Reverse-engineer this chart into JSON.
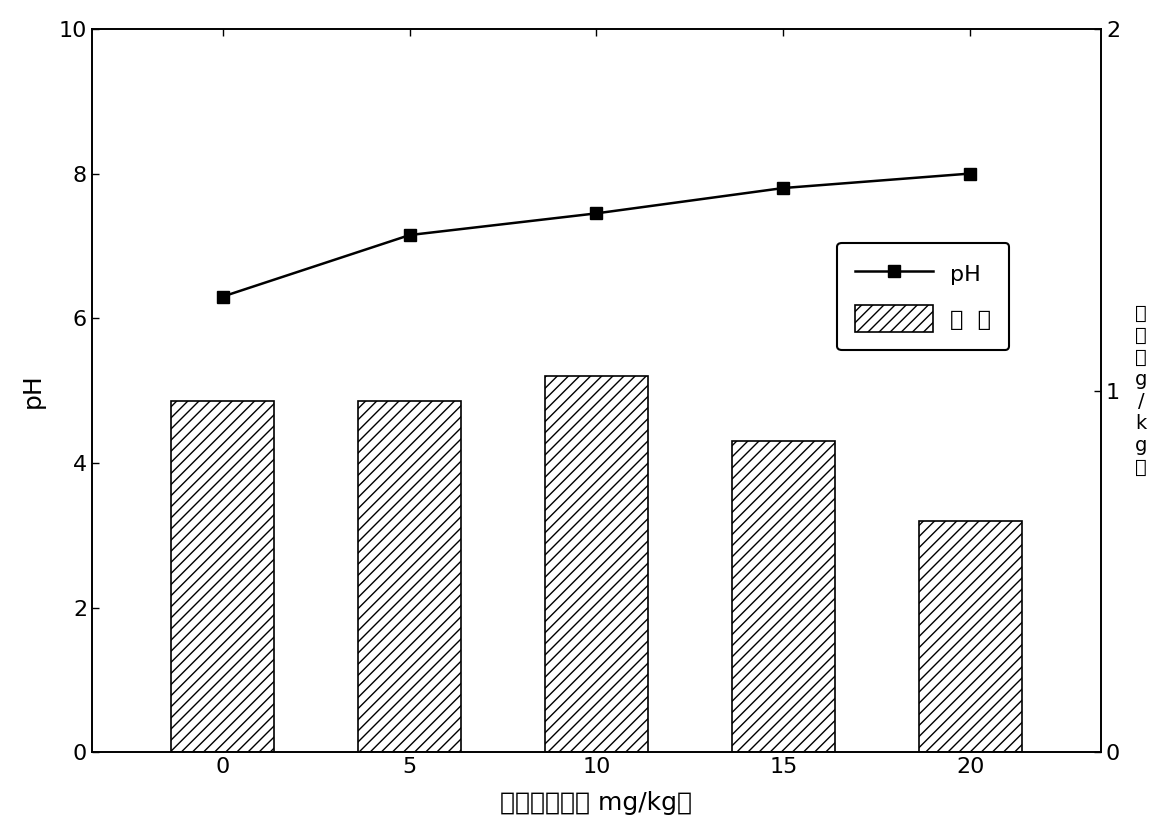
{
  "x_categories": [
    0,
    5,
    10,
    15,
    20
  ],
  "bar_values": [
    4.85,
    4.85,
    5.2,
    4.3,
    3.2
  ],
  "ph_values": [
    6.3,
    7.15,
    7.45,
    7.8,
    8.0
  ],
  "bar_color": "white",
  "bar_edgecolor": "black",
  "line_color": "black",
  "marker": "s",
  "marker_color": "black",
  "xlabel": "碳化钒含量（ mg/kg）",
  "ylabel_left": "pH",
  "ylabel_right_line1": "总",
  "ylabel_right_line2": "酸",
  "ylabel_right_unit": "（g/kg）",
  "ylim_left": [
    0,
    10
  ],
  "ylim_right": [
    0,
    2
  ],
  "yticks_left": [
    0,
    2,
    4,
    6,
    8,
    10
  ],
  "yticks_right": [
    0,
    1,
    2
  ],
  "legend_ph": "pH",
  "legend_acid": "总  酸",
  "bar_width": 0.55,
  "hatch": "///",
  "background_color": "white",
  "figure_facecolor": "white",
  "fontsize_ticks": 16,
  "fontsize_label": 18,
  "fontsize_legend": 16
}
